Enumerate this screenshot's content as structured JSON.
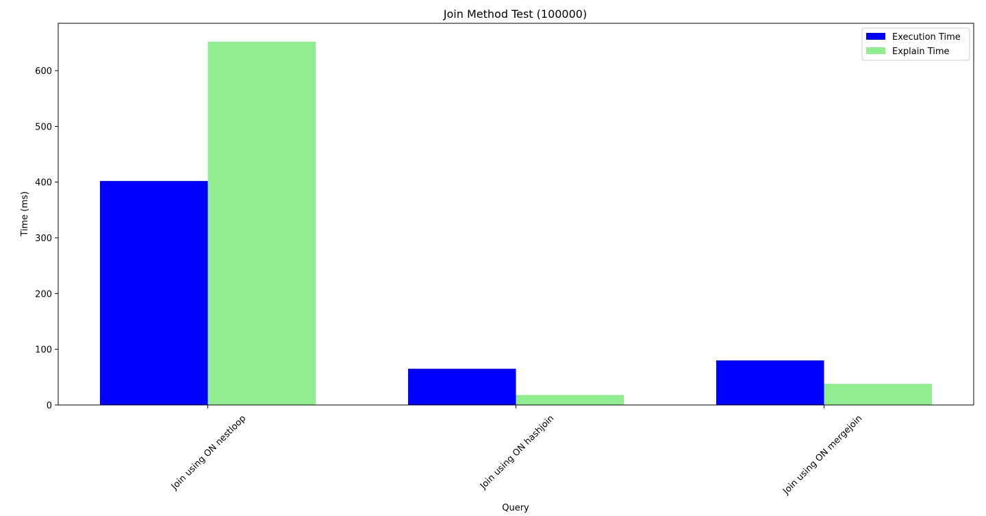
{
  "chart_data": {
    "type": "bar",
    "title": "Join Method Test (100000)",
    "xlabel": "Query",
    "ylabel": "Time (ms)",
    "categories": [
      "Join using ON nestloop",
      "Join using ON hashjoin",
      "Join using ON mergejoin"
    ],
    "series": [
      {
        "name": "Execution Time",
        "color": "#0000ff",
        "values": [
          402,
          65,
          80
        ]
      },
      {
        "name": "Explain Time",
        "color": "#90ee90",
        "values": [
          652,
          18,
          38
        ]
      }
    ],
    "ylim": [
      0,
      685
    ],
    "yticks": [
      0,
      100,
      200,
      300,
      400,
      500,
      600
    ],
    "grid": false,
    "legend_position": "top-right"
  }
}
